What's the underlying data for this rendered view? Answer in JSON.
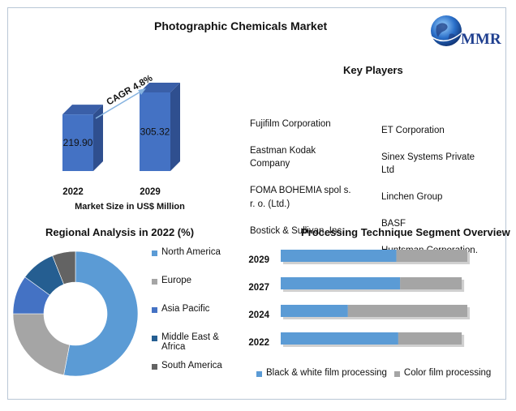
{
  "header": {
    "title": "Photographic Chemicals Market",
    "logo_text": "MMR",
    "logo_icon": "globe-icon"
  },
  "key_players": {
    "title": "Key Players",
    "left_column": [
      "Fujifilm Corporation",
      " Eastman Kodak\nCompany",
      " FOMA BOHEMIA spol s.\nr. o. (Ltd.)",
      " Bostick & Sullivan, Inc."
    ],
    "right_column": [
      "ET Corporation",
      " Sinex Systems Private\nLtd",
      " Linchen Group",
      " BASF",
      " Huntsman Corporation."
    ]
  },
  "chart_data": [
    {
      "type": "bar",
      "title": "",
      "xlabel": "Market Size in US$ Million",
      "categories": [
        "2022",
        "2029"
      ],
      "values": [
        219.9,
        305.32
      ],
      "value_labels": [
        "219.90",
        "305.32"
      ],
      "annotation": "CAGR 4.8%",
      "colors": {
        "bar_front": "#4472c4",
        "bar_side": "#2f4f8f",
        "bar_top": "#3a5fa8",
        "arrow": "#86b3e0"
      }
    },
    {
      "type": "pie",
      "title": "Regional Analysis in 2022 (%)",
      "categories": [
        "North America",
        "Europe",
        "Asia Pacific",
        "Middle East & Africa",
        "South America"
      ],
      "values": [
        53,
        22,
        10,
        9,
        6
      ],
      "colors": [
        "#5b9bd5",
        "#a5a5a5",
        "#4472c4",
        "#255e91",
        "#636363"
      ],
      "legend": "right"
    },
    {
      "type": "bar",
      "orientation": "horizontal",
      "stacked": true,
      "title": "Processing Technique Segment Overview",
      "categories": [
        "2029",
        "2027",
        "2024",
        "2022"
      ],
      "series": [
        {
          "name": "Black & white film processing",
          "values": [
            62,
            64,
            36,
            63
          ],
          "color": "#5b9bd5"
        },
        {
          "name": "Color film processing",
          "values": [
            38,
            33,
            64,
            34
          ],
          "color": "#a5a5a5"
        }
      ],
      "xlim": [
        0,
        100
      ],
      "legend": "bottom"
    }
  ]
}
